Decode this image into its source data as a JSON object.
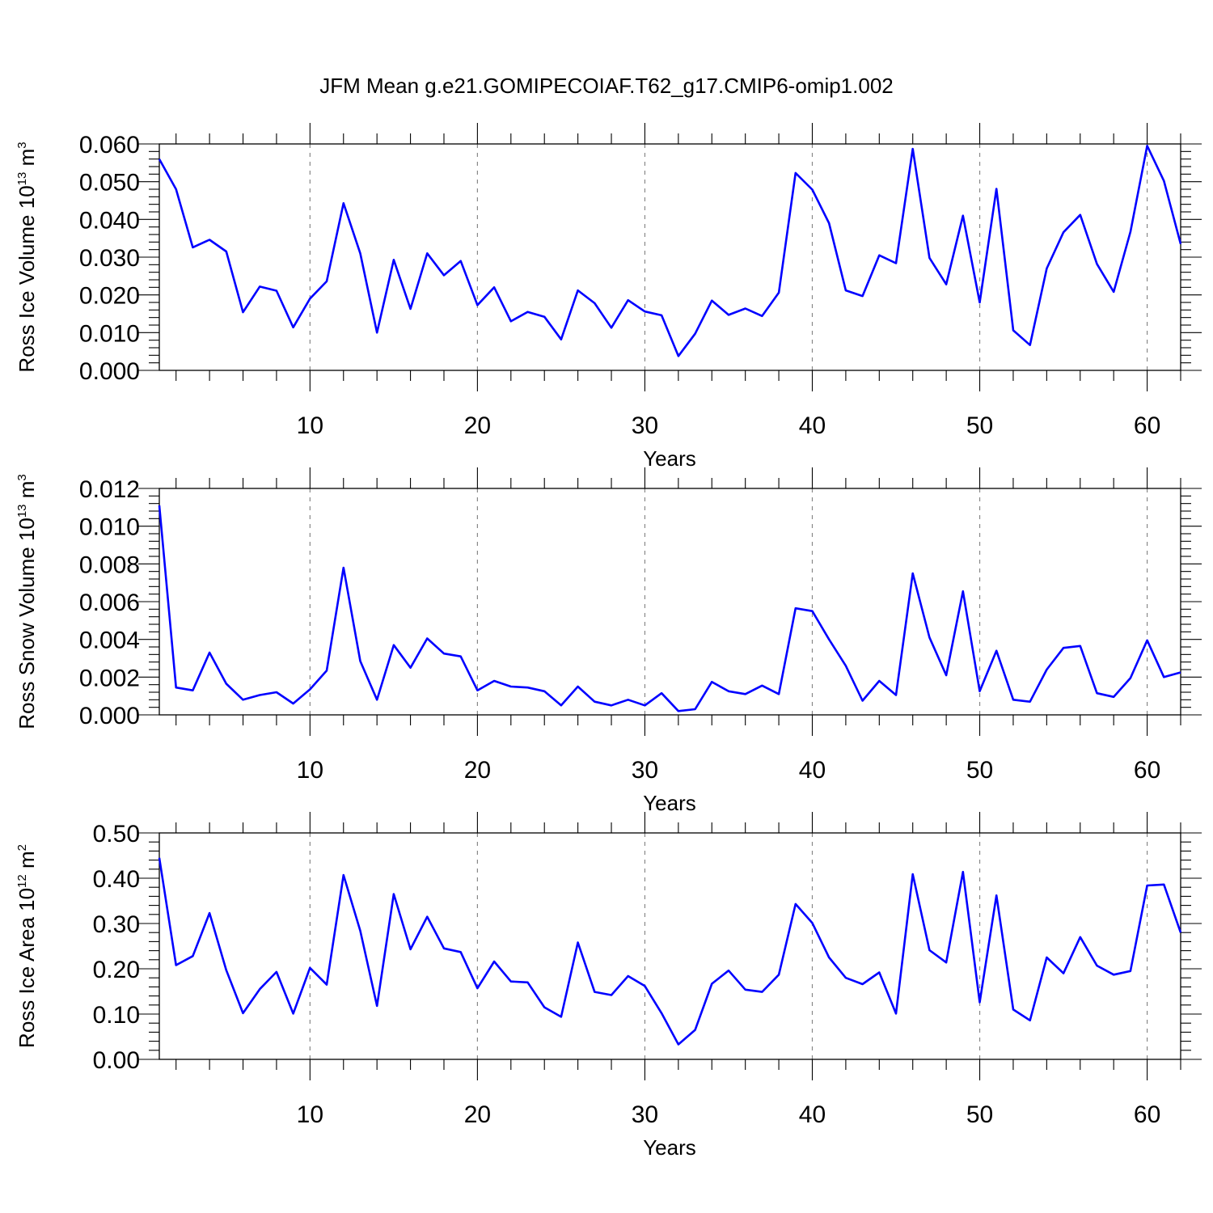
{
  "title": "JFM Mean g.e21.GOMIPECOIAF.T62_g17.CMIP6-omip1.002",
  "chart_data": [
    {
      "type": "line",
      "name": "ross-ice-volume",
      "ylabel": "Ross Ice Volume 10",
      "ylabel_exponent": "13",
      "ylabel_unit": "m",
      "ylabel_unit_exponent": "3",
      "xlabel": "Years",
      "xlim": [
        1,
        62
      ],
      "ylim": [
        0.0,
        0.06
      ],
      "yticks": [
        "0.000",
        "0.010",
        "0.020",
        "0.030",
        "0.040",
        "0.050",
        "0.060"
      ],
      "xticks": [
        "10",
        "20",
        "30",
        "40",
        "50",
        "60"
      ],
      "grid": "vertical dashed at x ticks",
      "line_color": "#0000ff",
      "x": [
        1,
        2,
        3,
        4,
        5,
        6,
        7,
        8,
        9,
        10,
        11,
        12,
        13,
        14,
        15,
        16,
        17,
        18,
        19,
        20,
        21,
        22,
        23,
        24,
        25,
        26,
        27,
        28,
        29,
        30,
        31,
        32,
        33,
        34,
        35,
        36,
        37,
        38,
        39,
        40,
        41,
        42,
        43,
        44,
        45,
        46,
        47,
        48,
        49,
        50,
        51,
        52,
        53,
        54,
        55,
        56,
        57,
        58,
        59,
        60,
        61,
        62
      ],
      "values": [
        0.056,
        0.048,
        0.0326,
        0.0346,
        0.0315,
        0.0154,
        0.0222,
        0.0211,
        0.0114,
        0.019,
        0.0236,
        0.0443,
        0.031,
        0.01,
        0.0293,
        0.0163,
        0.031,
        0.0252,
        0.029,
        0.0173,
        0.022,
        0.013,
        0.0155,
        0.0142,
        0.0082,
        0.0212,
        0.0178,
        0.0113,
        0.0186,
        0.0156,
        0.0146,
        0.0038,
        0.0097,
        0.0185,
        0.0147,
        0.0164,
        0.0144,
        0.0206,
        0.0523,
        0.0479,
        0.039,
        0.0212,
        0.0197,
        0.0305,
        0.0284,
        0.0587,
        0.0298,
        0.0228,
        0.041,
        0.018,
        0.0481,
        0.0106,
        0.0067,
        0.027,
        0.0366,
        0.0412,
        0.0282,
        0.0208,
        0.0367,
        0.0595,
        0.0502,
        0.0335
      ]
    },
    {
      "type": "line",
      "name": "ross-snow-volume",
      "ylabel": "Ross Snow Volume 10",
      "ylabel_exponent": "13",
      "ylabel_unit": "m",
      "ylabel_unit_exponent": "3",
      "xlabel": "Years",
      "xlim": [
        1,
        62
      ],
      "ylim": [
        0.0,
        0.012
      ],
      "yticks": [
        "0.000",
        "0.002",
        "0.004",
        "0.006",
        "0.008",
        "0.010",
        "0.012"
      ],
      "xticks": [
        "10",
        "20",
        "30",
        "40",
        "50",
        "60"
      ],
      "grid": "vertical dashed at x ticks",
      "line_color": "#0000ff",
      "x": [
        1,
        2,
        3,
        4,
        5,
        6,
        7,
        8,
        9,
        10,
        11,
        12,
        13,
        14,
        15,
        16,
        17,
        18,
        19,
        20,
        21,
        22,
        23,
        24,
        25,
        26,
        27,
        28,
        29,
        30,
        31,
        32,
        33,
        34,
        35,
        36,
        37,
        38,
        39,
        40,
        41,
        42,
        43,
        44,
        45,
        46,
        47,
        48,
        49,
        50,
        51,
        52,
        53,
        54,
        55,
        56,
        57,
        58,
        59,
        60,
        61,
        62
      ],
      "values": [
        0.0111,
        0.00145,
        0.0013,
        0.0033,
        0.00165,
        0.0008,
        0.00105,
        0.0012,
        0.0006,
        0.00135,
        0.00235,
        0.0078,
        0.00285,
        0.0008,
        0.0037,
        0.0025,
        0.00405,
        0.00325,
        0.0031,
        0.0013,
        0.0018,
        0.0015,
        0.00145,
        0.00125,
        0.0005,
        0.0015,
        0.0007,
        0.0005,
        0.0008,
        0.0005,
        0.00115,
        0.0002,
        0.0003,
        0.00175,
        0.00125,
        0.0011,
        0.00155,
        0.0011,
        0.00565,
        0.0055,
        0.004,
        0.0026,
        0.00075,
        0.0018,
        0.00105,
        0.0075,
        0.0041,
        0.0021,
        0.00655,
        0.00125,
        0.0034,
        0.0008,
        0.0007,
        0.0024,
        0.00355,
        0.00365,
        0.00115,
        0.00095,
        0.00195,
        0.00395,
        0.002,
        0.00225
      ]
    },
    {
      "type": "line",
      "name": "ross-ice-area",
      "ylabel": "Ross Ice Area 10",
      "ylabel_exponent": "12",
      "ylabel_unit": "m",
      "ylabel_unit_exponent": "2",
      "xlabel": "Years",
      "xlim": [
        1,
        62
      ],
      "ylim": [
        0.0,
        0.5
      ],
      "yticks": [
        "0.00",
        "0.10",
        "0.20",
        "0.30",
        "0.40",
        "0.50"
      ],
      "xticks": [
        "10",
        "20",
        "30",
        "40",
        "50",
        "60"
      ],
      "grid": "vertical dashed at x ticks",
      "line_color": "#0000ff",
      "x": [
        1,
        2,
        3,
        4,
        5,
        6,
        7,
        8,
        9,
        10,
        11,
        12,
        13,
        14,
        15,
        16,
        17,
        18,
        19,
        20,
        21,
        22,
        23,
        24,
        25,
        26,
        27,
        28,
        29,
        30,
        31,
        32,
        33,
        34,
        35,
        36,
        37,
        38,
        39,
        40,
        41,
        42,
        43,
        44,
        45,
        46,
        47,
        48,
        49,
        50,
        51,
        52,
        53,
        54,
        55,
        56,
        57,
        58,
        59,
        60,
        61,
        62
      ],
      "values": [
        0.445,
        0.208,
        0.228,
        0.323,
        0.197,
        0.102,
        0.155,
        0.193,
        0.101,
        0.202,
        0.165,
        0.407,
        0.284,
        0.118,
        0.365,
        0.243,
        0.315,
        0.245,
        0.237,
        0.157,
        0.216,
        0.172,
        0.17,
        0.115,
        0.094,
        0.258,
        0.149,
        0.142,
        0.184,
        0.162,
        0.102,
        0.033,
        0.065,
        0.167,
        0.196,
        0.154,
        0.149,
        0.187,
        0.343,
        0.301,
        0.225,
        0.18,
        0.166,
        0.192,
        0.101,
        0.409,
        0.241,
        0.214,
        0.414,
        0.126,
        0.362,
        0.11,
        0.086,
        0.225,
        0.19,
        0.27,
        0.207,
        0.187,
        0.195,
        0.384,
        0.386,
        0.28
      ]
    }
  ]
}
